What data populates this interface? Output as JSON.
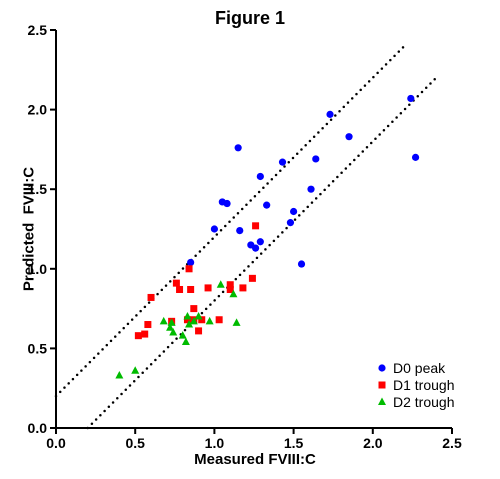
{
  "chart_data": {
    "type": "scatter",
    "title": "Figure 1",
    "xlabel": "Measured FVIII:C",
    "ylabel": "Predicted  FVIII:C",
    "xlim": [
      0,
      2.5
    ],
    "ylim": [
      0,
      2.5
    ],
    "xticks": [
      "0.0",
      "0.5",
      "1.0",
      "1.5",
      "2.0",
      "2.5"
    ],
    "yticks": [
      "0.0",
      "0.5",
      "1.0",
      "1.5",
      "2.0",
      "2.5"
    ],
    "grid": false,
    "legend_position": "bottom-right",
    "reference_lines": [
      {
        "style": "dotted",
        "color": "#000000",
        "points": [
          [
            0,
            0.2
          ],
          [
            2.2,
            2.4
          ]
        ]
      },
      {
        "style": "dotted",
        "color": "#000000",
        "points": [
          [
            0.2,
            0
          ],
          [
            2.4,
            2.2
          ]
        ]
      }
    ],
    "series": [
      {
        "name": "D0 peak",
        "marker": "circle",
        "color": "#0000ff",
        "points": [
          [
            0.85,
            1.04
          ],
          [
            1.0,
            1.25
          ],
          [
            1.05,
            1.42
          ],
          [
            1.08,
            1.41
          ],
          [
            1.15,
            1.76
          ],
          [
            1.16,
            1.24
          ],
          [
            1.23,
            1.15
          ],
          [
            1.26,
            1.13
          ],
          [
            1.29,
            1.17
          ],
          [
            1.29,
            1.58
          ],
          [
            1.33,
            1.4
          ],
          [
            1.43,
            1.67
          ],
          [
            1.48,
            1.29
          ],
          [
            1.5,
            1.36
          ],
          [
            1.55,
            1.03
          ],
          [
            1.61,
            1.5
          ],
          [
            1.64,
            1.69
          ],
          [
            1.73,
            1.97
          ],
          [
            1.85,
            1.83
          ],
          [
            2.24,
            2.07
          ],
          [
            2.27,
            1.7
          ]
        ]
      },
      {
        "name": "D1 trough",
        "marker": "square",
        "color": "#ff0000",
        "points": [
          [
            0.52,
            0.58
          ],
          [
            0.56,
            0.59
          ],
          [
            0.58,
            0.65
          ],
          [
            0.6,
            0.82
          ],
          [
            0.73,
            0.67
          ],
          [
            0.76,
            0.91
          ],
          [
            0.78,
            0.87
          ],
          [
            0.83,
            0.68
          ],
          [
            0.84,
            1.0
          ],
          [
            0.85,
            0.87
          ],
          [
            0.87,
            0.75
          ],
          [
            0.87,
            0.68
          ],
          [
            0.9,
            0.61
          ],
          [
            0.92,
            0.68
          ],
          [
            0.96,
            0.88
          ],
          [
            1.03,
            0.68
          ],
          [
            1.1,
            0.87
          ],
          [
            1.1,
            0.9
          ],
          [
            1.18,
            0.88
          ],
          [
            1.24,
            0.94
          ],
          [
            1.26,
            1.27
          ]
        ]
      },
      {
        "name": "D2 trough",
        "marker": "triangle",
        "color": "#00bb00",
        "points": [
          [
            0.4,
            0.33
          ],
          [
            0.5,
            0.36
          ],
          [
            0.68,
            0.67
          ],
          [
            0.72,
            0.63
          ],
          [
            0.73,
            0.66
          ],
          [
            0.74,
            0.6
          ],
          [
            0.8,
            0.58
          ],
          [
            0.82,
            0.54
          ],
          [
            0.83,
            0.7
          ],
          [
            0.84,
            0.65
          ],
          [
            0.87,
            0.67
          ],
          [
            0.9,
            0.7
          ],
          [
            0.97,
            0.67
          ],
          [
            1.04,
            0.9
          ],
          [
            1.12,
            0.84
          ],
          [
            1.14,
            0.66
          ]
        ]
      }
    ]
  }
}
